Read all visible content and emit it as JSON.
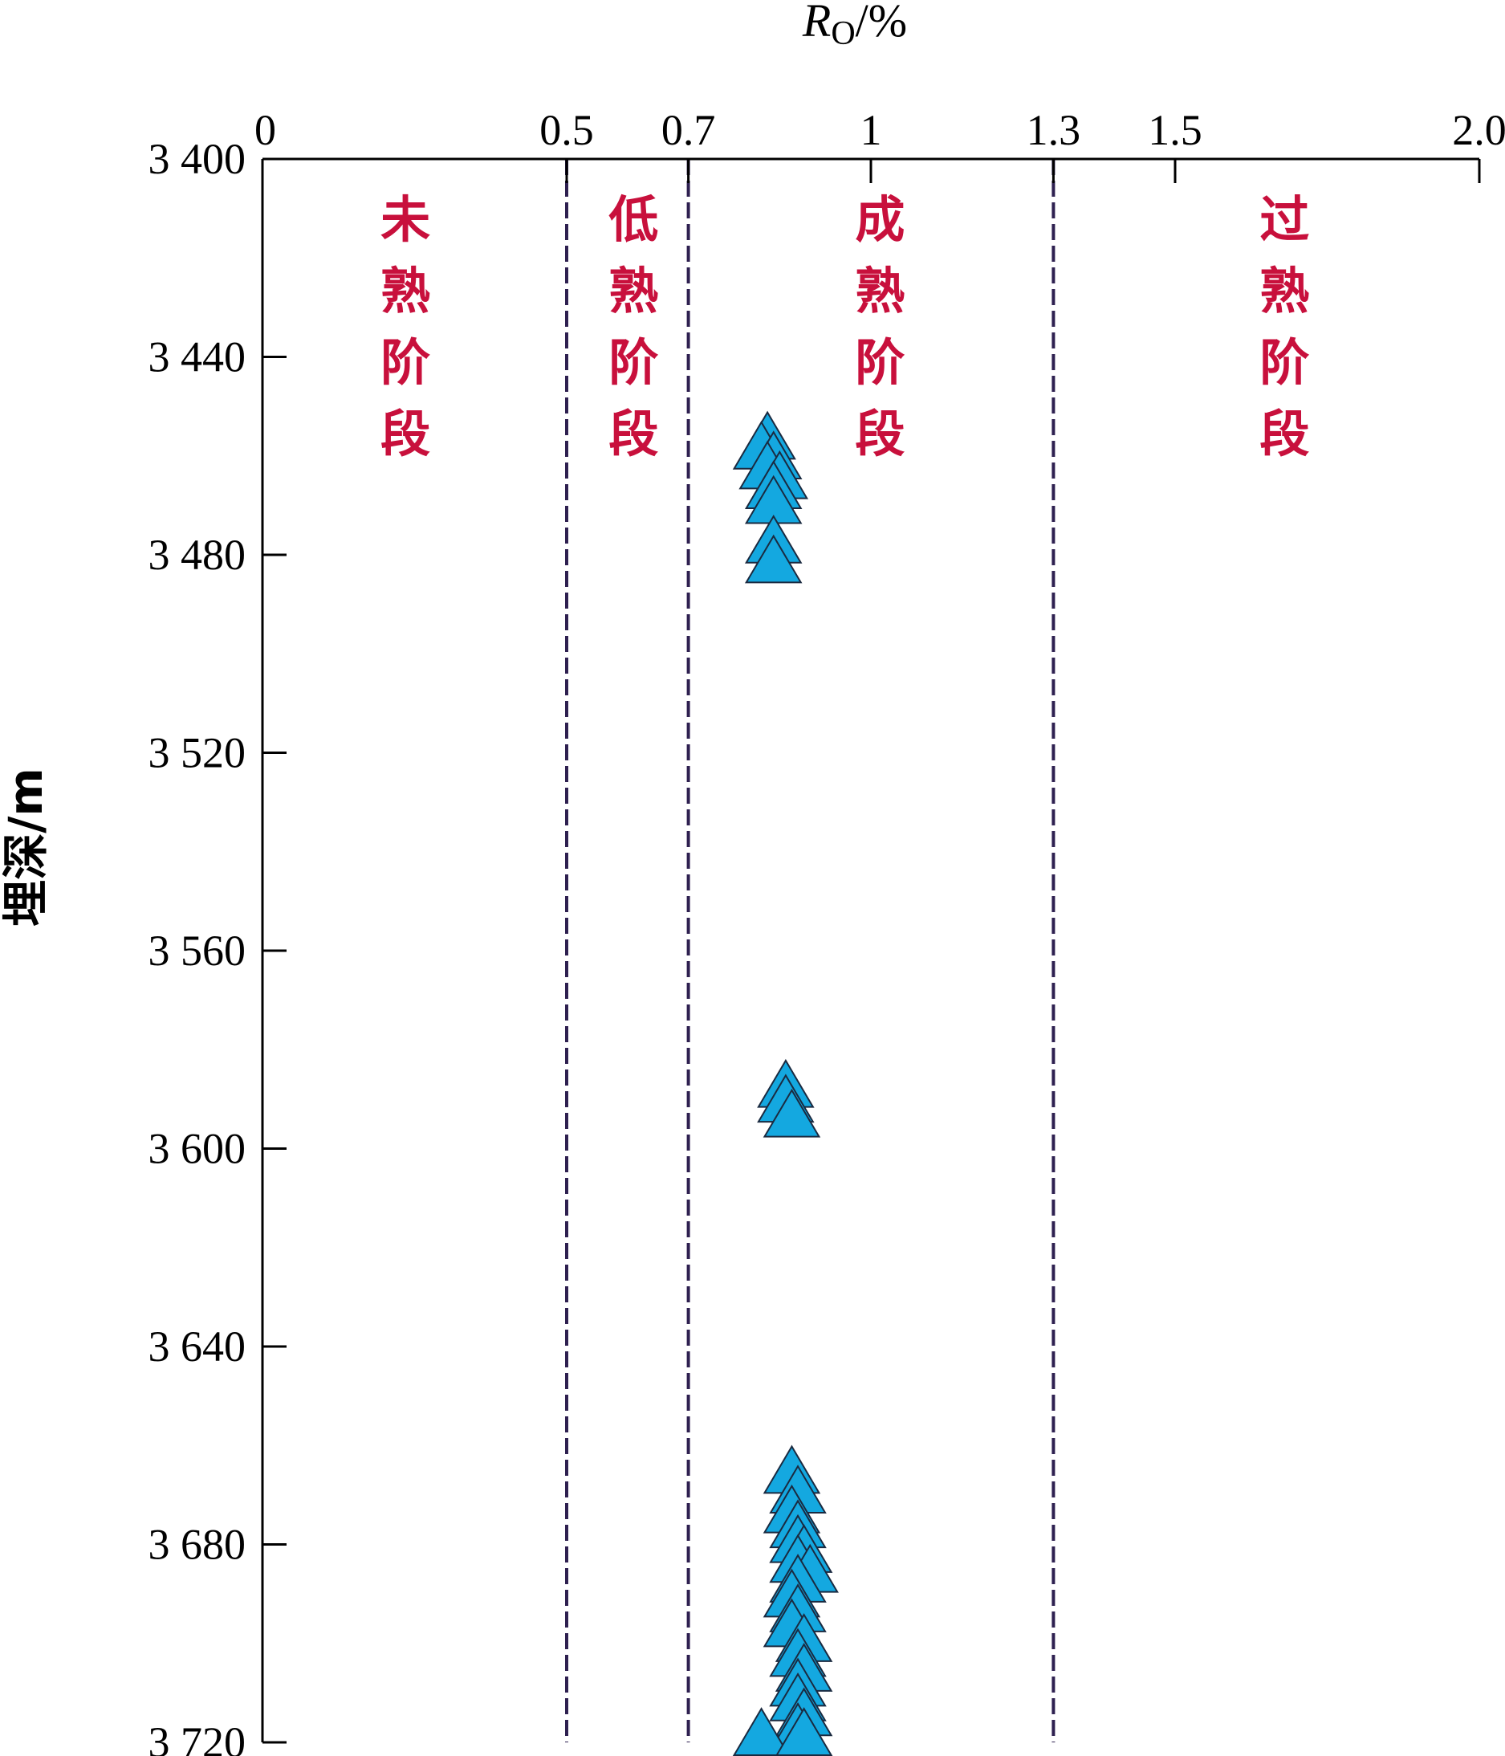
{
  "chart_data": {
    "type": "scatter",
    "title": "",
    "xlabel_main": "R",
    "xlabel_sub": "O",
    "xlabel_unit": "/%",
    "ylabel": "埋深/m",
    "x_axis_position": "top",
    "y_axis_inverted": true,
    "xlim": [
      0,
      2.0
    ],
    "ylim": [
      3400,
      3720
    ],
    "x_ticks": [
      {
        "value": 0,
        "label": "0"
      },
      {
        "value": 0.5,
        "label": "0.5"
      },
      {
        "value": 0.7,
        "label": "0.7"
      },
      {
        "value": 1,
        "label": "1"
      },
      {
        "value": 1.3,
        "label": "1.3"
      },
      {
        "value": 1.5,
        "label": "1.5"
      },
      {
        "value": 2.0,
        "label": "2.0"
      }
    ],
    "y_ticks": [
      {
        "value": 3400,
        "label": "3 400"
      },
      {
        "value": 3440,
        "label": "3 440"
      },
      {
        "value": 3480,
        "label": "3 480"
      },
      {
        "value": 3520,
        "label": "3 520"
      },
      {
        "value": 3560,
        "label": "3 560"
      },
      {
        "value": 3600,
        "label": "3 600"
      },
      {
        "value": 3640,
        "label": "3 640"
      },
      {
        "value": 3680,
        "label": "3 680"
      },
      {
        "value": 3720,
        "label": "3 720"
      }
    ],
    "boundaries": [
      0.5,
      0.7,
      1.3
    ],
    "boundary_color": "#2e2050",
    "zone_label_color": "#c8103c",
    "zones": [
      {
        "x": 0.235,
        "label": [
          "未",
          "熟",
          "阶",
          "段"
        ]
      },
      {
        "x": 0.61,
        "label": [
          "低",
          "熟",
          "阶",
          "段"
        ]
      },
      {
        "x": 1.015,
        "label": [
          "成",
          "熟",
          "阶",
          "段"
        ]
      },
      {
        "x": 1.68,
        "label": [
          "过",
          "熟",
          "阶",
          "段"
        ]
      }
    ],
    "marker": "triangle",
    "marker_color": "#14a8e0",
    "marker_stroke": "#1a2a40",
    "points": [
      {
        "x": 0.83,
        "y": 3457
      },
      {
        "x": 0.82,
        "y": 3459
      },
      {
        "x": 0.84,
        "y": 3461
      },
      {
        "x": 0.83,
        "y": 3463
      },
      {
        "x": 0.85,
        "y": 3465
      },
      {
        "x": 0.84,
        "y": 3467
      },
      {
        "x": 0.84,
        "y": 3470
      },
      {
        "x": 0.84,
        "y": 3478
      },
      {
        "x": 0.84,
        "y": 3482
      },
      {
        "x": 0.86,
        "y": 3588
      },
      {
        "x": 0.86,
        "y": 3591
      },
      {
        "x": 0.87,
        "y": 3594
      },
      {
        "x": 0.87,
        "y": 3666
      },
      {
        "x": 0.88,
        "y": 3670
      },
      {
        "x": 0.87,
        "y": 3674
      },
      {
        "x": 0.88,
        "y": 3677
      },
      {
        "x": 0.88,
        "y": 3680
      },
      {
        "x": 0.89,
        "y": 3682
      },
      {
        "x": 0.88,
        "y": 3684
      },
      {
        "x": 0.9,
        "y": 3686
      },
      {
        "x": 0.88,
        "y": 3688
      },
      {
        "x": 0.87,
        "y": 3691
      },
      {
        "x": 0.88,
        "y": 3694
      },
      {
        "x": 0.87,
        "y": 3697
      },
      {
        "x": 0.89,
        "y": 3700
      },
      {
        "x": 0.88,
        "y": 3703
      },
      {
        "x": 0.89,
        "y": 3706
      },
      {
        "x": 0.88,
        "y": 3709
      },
      {
        "x": 0.88,
        "y": 3712
      },
      {
        "x": 0.89,
        "y": 3715
      },
      {
        "x": 0.88,
        "y": 3718
      },
      {
        "x": 0.82,
        "y": 3719
      },
      {
        "x": 0.89,
        "y": 3719
      }
    ]
  }
}
